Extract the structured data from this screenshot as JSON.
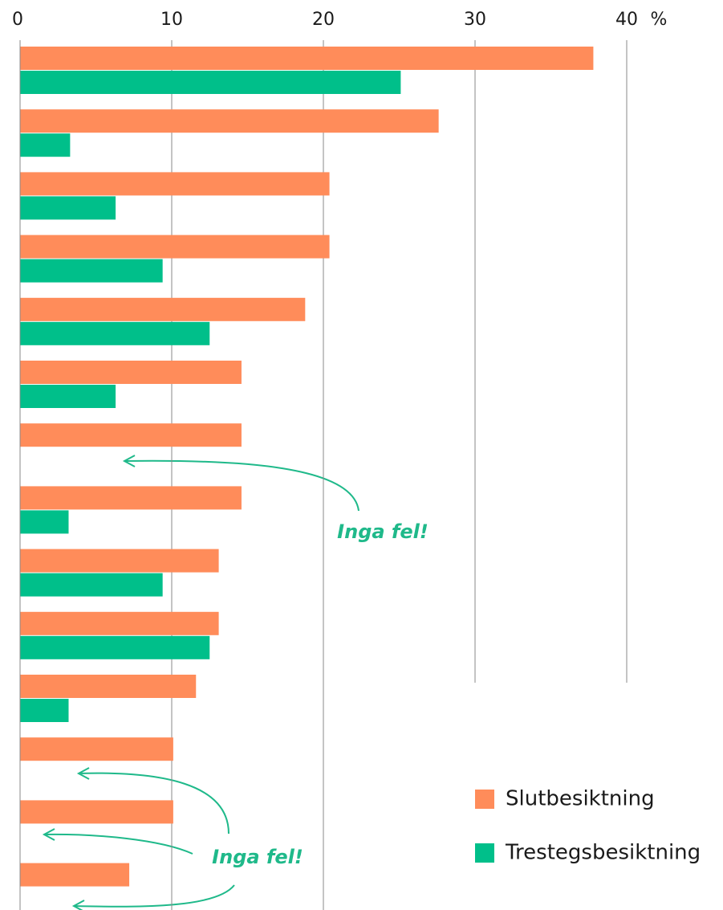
{
  "chart_data": {
    "type": "barh",
    "x_unit": "%",
    "categories": [
      null,
      null,
      null,
      null,
      null,
      null,
      null,
      null,
      null,
      null,
      null,
      null,
      null,
      null
    ],
    "series": [
      {
        "name": "Slutbesiktning",
        "color": "#ff8c5a",
        "values": [
          37.8,
          27.6,
          20.4,
          20.4,
          18.8,
          14.6,
          14.6,
          14.6,
          13.1,
          13.1,
          11.6,
          10.1,
          10.1,
          7.2
        ]
      },
      {
        "name": "Trestegsbesiktning",
        "color": "#00bf8a",
        "values": [
          25.1,
          3.3,
          6.3,
          9.4,
          12.5,
          6.3,
          null,
          3.2,
          9.4,
          12.5,
          3.2,
          null,
          null,
          null
        ]
      }
    ],
    "xlim": [
      0,
      40
    ],
    "xticks": [
      0,
      10,
      20,
      30,
      40
    ],
    "grid": true,
    "legend": "lower right",
    "annotations": [
      "Inga fel!",
      "Inga fel!"
    ]
  }
}
